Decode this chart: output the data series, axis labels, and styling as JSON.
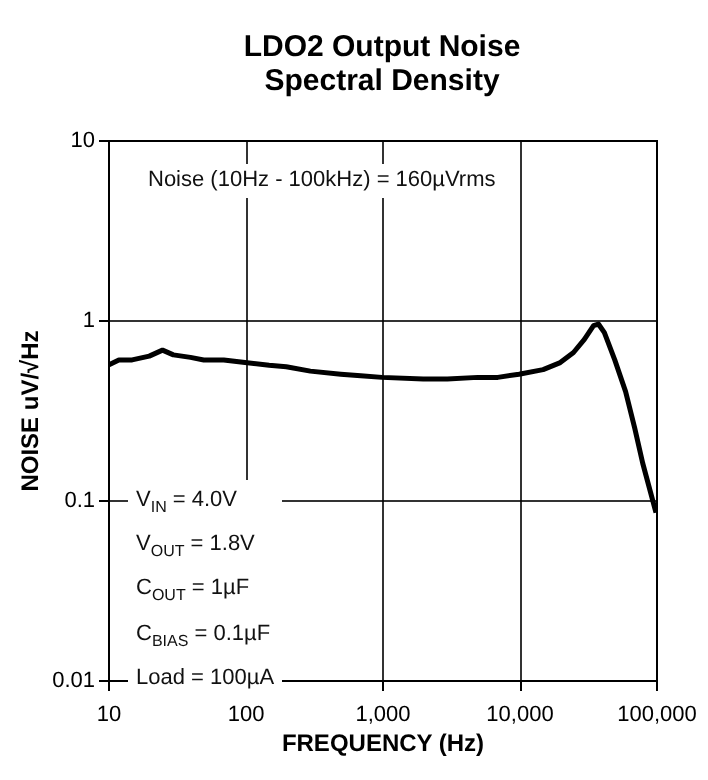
{
  "chart_data": {
    "type": "line",
    "title": "LDO2 Output Noise Spectral Density",
    "xlabel": "FREQUENCY (Hz)",
    "ylabel": "NOISE uV/√Hz",
    "annotations": [
      "Noise (10Hz - 100kHz) = 160µVrms",
      "V$_{IN}$ = 4.0V",
      "V$_{OUT}$ = 1.8V",
      "C$_{OUT}$ = 1µF",
      "C$_{BIAS}$ = 0.1µF",
      "Load = 100µA"
    ],
    "x": [
      10,
      12,
      15,
      20,
      25,
      30,
      40,
      50,
      70,
      100,
      150,
      200,
      300,
      500,
      700,
      1000,
      2000,
      3000,
      5000,
      7000,
      10000,
      15000,
      20000,
      25000,
      30000,
      35000,
      38000,
      42000,
      50000,
      60000,
      70000,
      80000,
      100000
    ],
    "series": [
      {
        "color": "#000000",
        "values": [
          0.56,
          0.6,
          0.6,
          0.63,
          0.68,
          0.64,
          0.62,
          0.6,
          0.6,
          0.58,
          0.56,
          0.55,
          0.52,
          0.5,
          0.49,
          0.48,
          0.47,
          0.47,
          0.48,
          0.48,
          0.5,
          0.53,
          0.58,
          0.66,
          0.78,
          0.93,
          0.95,
          0.85,
          0.6,
          0.4,
          0.25,
          0.16,
          0.085
        ]
      }
    ],
    "log": "xy",
    "xlim": [
      10,
      100000
    ],
    "ylim": [
      0.01,
      10
    ],
    "xticks": [
      10,
      100,
      {
        "value": 1000,
        "label": "1,000"
      },
      {
        "value": 10000,
        "label": "10,000"
      },
      {
        "value": 100000,
        "label": "100,000"
      }
    ],
    "yticks": [
      0.01,
      0.1,
      1,
      10
    ],
    "grid": true,
    "line_style": "solid",
    "marker": "none"
  }
}
